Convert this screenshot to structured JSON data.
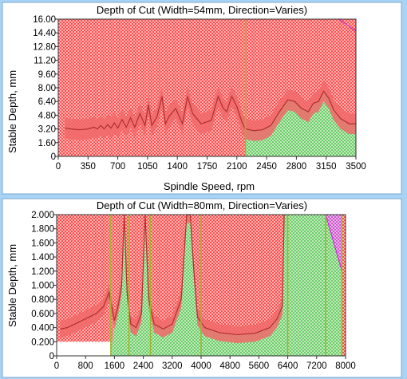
{
  "chart_data": [
    {
      "type": "area",
      "title": "Depth of Cut (Width=54mm, Direction=Varies)",
      "xlabel": "Spindle Speed, rpm",
      "ylabel": "Stable Depth, mm",
      "xlim": [
        0,
        3500
      ],
      "ylim": [
        0,
        16
      ],
      "xticks": [
        "0",
        "350",
        "700",
        "1050",
        "1400",
        "1750",
        "2100",
        "2450",
        "2800",
        "3150",
        "3500"
      ],
      "yticks": [
        "0",
        "1.60",
        "3.20",
        "4.80",
        "6.40",
        "8.00",
        "9.60",
        "11.20",
        "12.80",
        "14.40",
        "16.00"
      ],
      "grid": false,
      "colors": {
        "unstable": "#ff6b6b",
        "stable": "#78d878",
        "boundary": "#e05050",
        "marker": "#9ab530",
        "oblique": "#cc22cc"
      },
      "boundary": {
        "x": [
          80,
          150,
          250,
          350,
          420,
          460,
          500,
          540,
          580,
          620,
          660,
          700,
          750,
          800,
          850,
          900,
          960,
          1020,
          1060,
          1100,
          1160,
          1220,
          1260,
          1300,
          1380,
          1460,
          1520,
          1580,
          1680,
          1800,
          1880,
          1940,
          1980,
          2040,
          2100,
          2160,
          2200,
          2300,
          2400,
          2500,
          2600,
          2700,
          2780,
          2860,
          2940,
          3000,
          3060,
          3120,
          3180,
          3240,
          3320,
          3420,
          3500
        ],
        "y": [
          3.3,
          3.2,
          3.1,
          3.2,
          3.4,
          3.2,
          3.6,
          3.2,
          3.7,
          3.3,
          3.9,
          3.3,
          4.3,
          3.4,
          4.5,
          3.4,
          5.0,
          3.6,
          6.0,
          3.6,
          4.6,
          7.0,
          3.8,
          4.6,
          5.6,
          3.8,
          7.0,
          5.0,
          3.8,
          4.2,
          7.0,
          5.6,
          5.2,
          7.0,
          5.8,
          4.0,
          3.2,
          3.0,
          3.1,
          3.6,
          5.2,
          6.6,
          6.4,
          5.6,
          5.2,
          6.2,
          6.4,
          7.6,
          6.8,
          5.4,
          4.4,
          3.8,
          3.8
        ]
      },
      "stable_region_from_x": 2200,
      "markers_x": [
        2200
      ]
    },
    {
      "type": "area",
      "title": "Depth of Cut (Width=80mm, Direction=Varies)",
      "xlabel": "",
      "ylabel": "Stable Depth, mm",
      "xlim": [
        0,
        8000
      ],
      "ylim": [
        0,
        2
      ],
      "xticks": [
        "0",
        "800",
        "1600",
        "2400",
        "3200",
        "4000",
        "4800",
        "5600",
        "6400",
        "7200",
        "8000"
      ],
      "yticks": [
        "0",
        "0.200",
        "0.400",
        "0.600",
        "0.800",
        "1.000",
        "1.200",
        "1.400",
        "1.600",
        "1.800",
        "2.000"
      ],
      "grid": false,
      "colors": {
        "unstable": "#ff6b6b",
        "stable": "#78d878",
        "boundary": "#e05050",
        "marker": "#9ab530",
        "oblique": "#cc22cc"
      },
      "boundary": {
        "x": [
          100,
          300,
          500,
          700,
          900,
          1100,
          1300,
          1450,
          1600,
          1700,
          1800,
          1870,
          1950,
          2050,
          2200,
          2350,
          2450,
          2550,
          2700,
          2950,
          3200,
          3450,
          3600,
          3700,
          3800,
          3900,
          4100,
          4500,
          5000,
          5500,
          5900,
          6100,
          6250,
          6300
        ],
        "y": [
          0.38,
          0.4,
          0.45,
          0.5,
          0.55,
          0.6,
          0.7,
          0.9,
          0.5,
          0.7,
          1.0,
          2.0,
          0.9,
          0.45,
          0.4,
          0.6,
          2.0,
          0.8,
          0.45,
          0.38,
          0.45,
          0.8,
          2.0,
          2.0,
          1.2,
          0.55,
          0.4,
          0.33,
          0.3,
          0.32,
          0.4,
          0.52,
          0.7,
          2.0
        ]
      },
      "stable_region_from_x": 1500,
      "stable_region_right_x": 7900,
      "markers_x": [
        1500,
        2000,
        2600,
        4000,
        6400,
        7450,
        7900
      ]
    }
  ]
}
